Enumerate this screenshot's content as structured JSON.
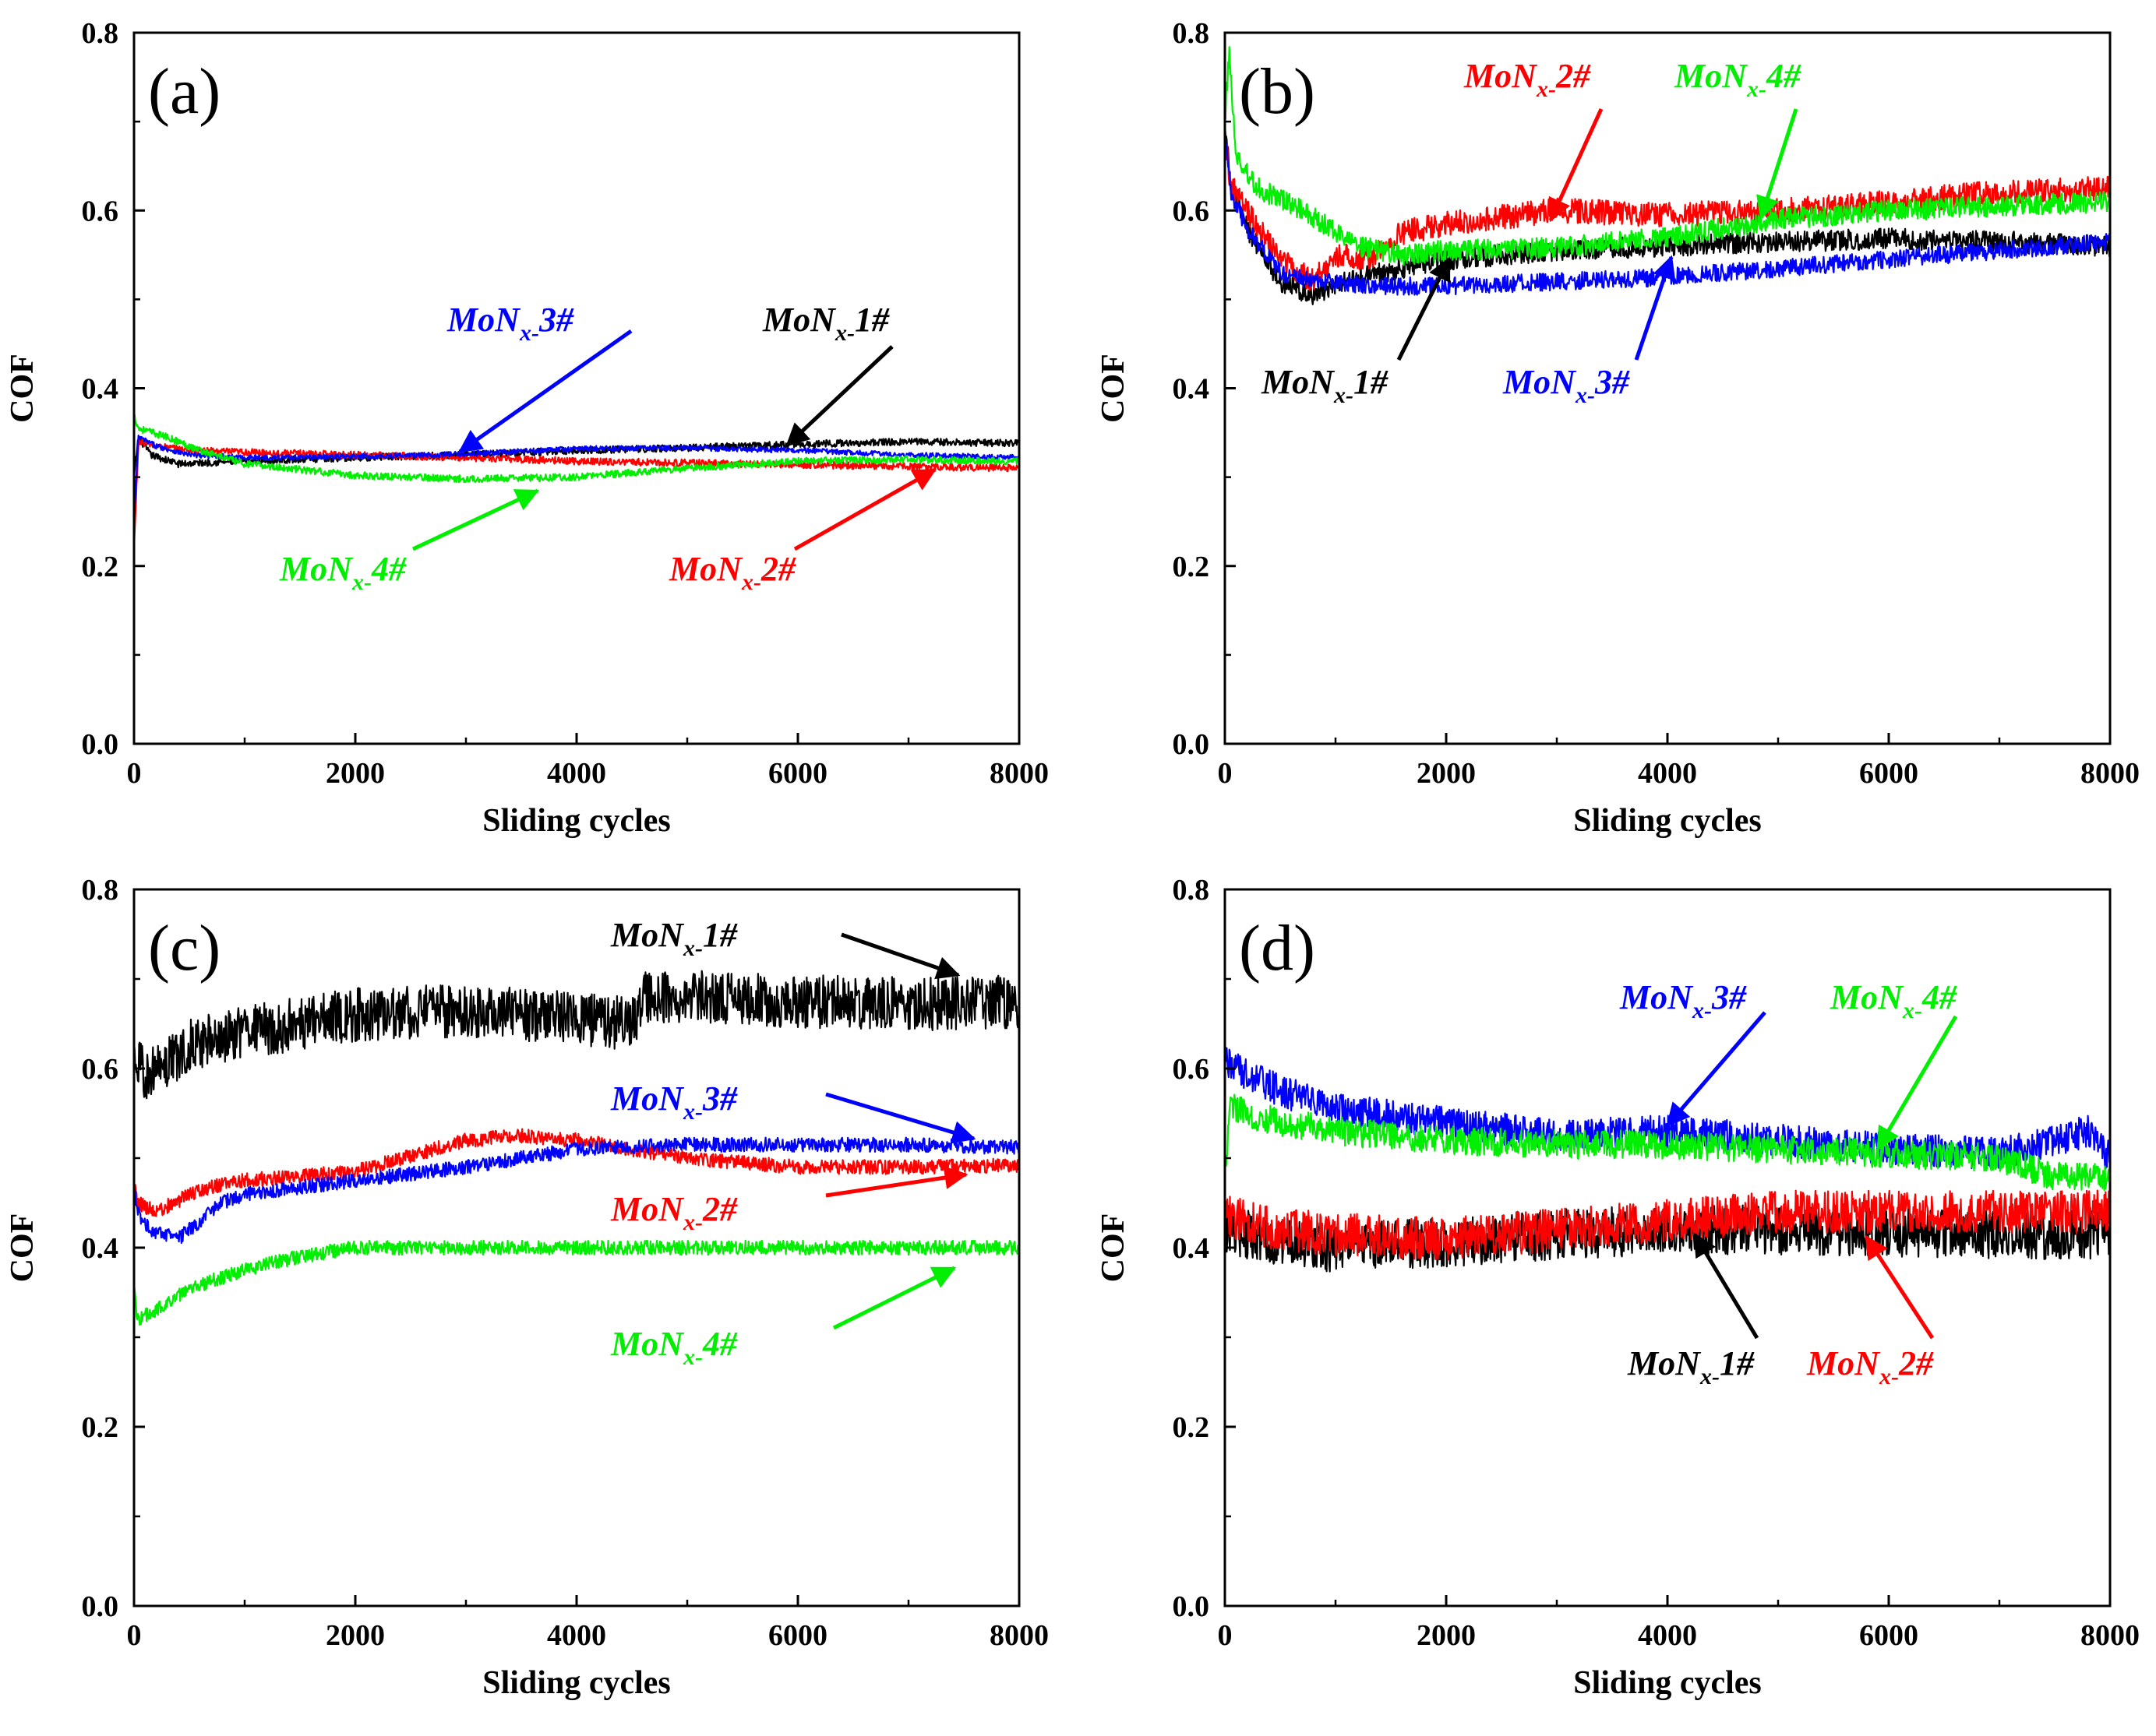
{
  "figure_title": "",
  "chart_data": [
    {
      "type": "line",
      "panel_label": "(a)",
      "xlabel": "Sliding cycles",
      "ylabel": "COF",
      "xlim": [
        0,
        8000
      ],
      "ylim": [
        0.0,
        0.8
      ],
      "x_ticks": [
        0,
        2000,
        4000,
        6000,
        8000
      ],
      "y_ticks": [
        0.0,
        0.2,
        0.4,
        0.6,
        0.8
      ],
      "x_tick_labels": [
        "0",
        "2000",
        "4000",
        "6000",
        "8000"
      ],
      "y_tick_labels": [
        "0.0",
        "0.2",
        "0.4",
        "0.6",
        "0.8"
      ],
      "series": [
        {
          "name": "MoNx-1#",
          "color": "#000000",
          "noise": 0.004,
          "x": [
            0,
            40,
            150,
            400,
            1000,
            2000,
            3000,
            4000,
            5000,
            6000,
            7000,
            8000
          ],
          "y": [
            0.3,
            0.345,
            0.325,
            0.315,
            0.318,
            0.322,
            0.325,
            0.33,
            0.333,
            0.337,
            0.34,
            0.338
          ]
        },
        {
          "name": "MoNx-2#",
          "color": "#ff0000",
          "noise": 0.004,
          "x": [
            0,
            40,
            200,
            500,
            1000,
            2000,
            3000,
            4000,
            5000,
            6000,
            7000,
            8000
          ],
          "y": [
            0.22,
            0.34,
            0.335,
            0.33,
            0.328,
            0.325,
            0.322,
            0.318,
            0.316,
            0.314,
            0.312,
            0.31
          ]
        },
        {
          "name": "MoNx-3#",
          "color": "#0000ff",
          "noise": 0.003,
          "x": [
            0,
            40,
            200,
            500,
            1000,
            2000,
            3000,
            4000,
            5000,
            6000,
            7000,
            8000
          ],
          "y": [
            0.25,
            0.345,
            0.335,
            0.325,
            0.322,
            0.323,
            0.326,
            0.332,
            0.333,
            0.33,
            0.325,
            0.322
          ]
        },
        {
          "name": "MoNx-4#",
          "color": "#00ee00",
          "noise": 0.004,
          "x": [
            0,
            40,
            300,
            600,
            1000,
            2000,
            3000,
            4000,
            5000,
            6000,
            7000,
            8000
          ],
          "y": [
            0.37,
            0.355,
            0.345,
            0.33,
            0.315,
            0.302,
            0.298,
            0.3,
            0.31,
            0.318,
            0.32,
            0.318
          ]
        }
      ],
      "annotations": [
        {
          "base": "MoN",
          "sub": "x-",
          "suffix": "3#",
          "color": "#0000ff"
        },
        {
          "base": "MoN",
          "sub": "x-",
          "suffix": "1#",
          "color": "#000000"
        },
        {
          "base": "MoN",
          "sub": "x-",
          "suffix": "4#",
          "color": "#00ee00"
        },
        {
          "base": "MoN",
          "sub": "x-",
          "suffix": "2#",
          "color": "#ff0000"
        }
      ]
    },
    {
      "type": "line",
      "panel_label": "(b)",
      "xlabel": "Sliding cycles",
      "ylabel": "COF",
      "xlim": [
        0,
        8000
      ],
      "ylim": [
        0.0,
        0.8
      ],
      "x_ticks": [
        0,
        2000,
        4000,
        6000,
        8000
      ],
      "y_ticks": [
        0.0,
        0.2,
        0.4,
        0.6,
        0.8
      ],
      "x_tick_labels": [
        "0",
        "2000",
        "4000",
        "6000",
        "8000"
      ],
      "y_tick_labels": [
        "0.0",
        "0.2",
        "0.4",
        "0.6",
        "0.8"
      ],
      "series": [
        {
          "name": "MoNx-1#",
          "color": "#000000",
          "noise": 0.012,
          "x": [
            0,
            50,
            200,
            500,
            800,
            1200,
            2000,
            3000,
            4000,
            5000,
            6000,
            7000,
            8000
          ],
          "y": [
            0.7,
            0.63,
            0.58,
            0.52,
            0.505,
            0.525,
            0.545,
            0.555,
            0.56,
            0.565,
            0.568,
            0.565,
            0.56
          ]
        },
        {
          "name": "MoNx-2#",
          "color": "#ff0000",
          "noise": 0.014,
          "x": [
            0,
            50,
            200,
            500,
            800,
            1000,
            1300,
            1600,
            2000,
            3000,
            4000,
            5000,
            6000,
            7000,
            8000
          ],
          "y": [
            0.69,
            0.63,
            0.6,
            0.545,
            0.52,
            0.55,
            0.545,
            0.575,
            0.585,
            0.6,
            0.595,
            0.6,
            0.61,
            0.62,
            0.625
          ]
        },
        {
          "name": "MoNx-3#",
          "color": "#0000ff",
          "noise": 0.01,
          "x": [
            0,
            50,
            200,
            500,
            800,
            1500,
            2000,
            3000,
            4000,
            5000,
            6000,
            7000,
            8000
          ],
          "y": [
            0.7,
            0.62,
            0.58,
            0.53,
            0.52,
            0.515,
            0.515,
            0.52,
            0.525,
            0.535,
            0.545,
            0.555,
            0.565
          ]
        },
        {
          "name": "MoNx-4#",
          "color": "#00ee00",
          "noise": 0.012,
          "x": [
            0,
            40,
            100,
            300,
            700,
            1200,
            1600,
            2000,
            3000,
            4000,
            5000,
            6000,
            7000,
            8000
          ],
          "y": [
            0.7,
            0.78,
            0.66,
            0.625,
            0.6,
            0.56,
            0.55,
            0.555,
            0.558,
            0.57,
            0.59,
            0.6,
            0.605,
            0.61
          ]
        }
      ],
      "annotations": [
        {
          "base": "MoN",
          "sub": "x-",
          "suffix": "2#",
          "color": "#ff0000"
        },
        {
          "base": "MoN",
          "sub": "x-",
          "suffix": "4#",
          "color": "#00ee00"
        },
        {
          "base": "MoN",
          "sub": "x-",
          "suffix": "1#",
          "color": "#000000"
        },
        {
          "base": "MoN",
          "sub": "x-",
          "suffix": "3#",
          "color": "#0000ff"
        }
      ]
    },
    {
      "type": "line",
      "panel_label": "(c)",
      "xlabel": "Sliding cycles",
      "ylabel": "COF",
      "xlim": [
        0,
        8000
      ],
      "ylim": [
        0.0,
        0.8
      ],
      "x_ticks": [
        0,
        2000,
        4000,
        6000,
        8000
      ],
      "y_ticks": [
        0.0,
        0.2,
        0.4,
        0.6,
        0.8
      ],
      "x_tick_labels": [
        "0",
        "2000",
        "4000",
        "6000",
        "8000"
      ],
      "y_tick_labels": [
        "0.0",
        "0.2",
        "0.4",
        "0.6",
        "0.8"
      ],
      "series": [
        {
          "name": "MoNx-1#",
          "color": "#000000",
          "noise": 0.03,
          "x": [
            0,
            30,
            150,
            500,
            1000,
            2000,
            3000,
            4000,
            4500,
            4600,
            5000,
            6000,
            7000,
            8000
          ],
          "y": [
            0.63,
            0.6,
            0.595,
            0.625,
            0.64,
            0.66,
            0.665,
            0.655,
            0.65,
            0.68,
            0.68,
            0.675,
            0.672,
            0.675
          ]
        },
        {
          "name": "MoNx-2#",
          "color": "#ff0000",
          "noise": 0.008,
          "x": [
            0,
            30,
            200,
            600,
            1000,
            2000,
            3000,
            3500,
            4000,
            4500,
            5000,
            6000,
            7000,
            8000
          ],
          "y": [
            0.47,
            0.45,
            0.44,
            0.465,
            0.475,
            0.485,
            0.52,
            0.525,
            0.52,
            0.51,
            0.5,
            0.49,
            0.49,
            0.492
          ]
        },
        {
          "name": "MoNx-3#",
          "color": "#0000ff",
          "noise": 0.008,
          "x": [
            0,
            30,
            150,
            400,
            600,
            800,
            1000,
            2000,
            3000,
            4000,
            5000,
            6000,
            7000,
            8000
          ],
          "y": [
            0.47,
            0.44,
            0.42,
            0.41,
            0.43,
            0.45,
            0.46,
            0.475,
            0.49,
            0.51,
            0.515,
            0.515,
            0.515,
            0.512
          ]
        },
        {
          "name": "MoNx-4#",
          "color": "#00ee00",
          "noise": 0.008,
          "x": [
            0,
            30,
            200,
            500,
            1000,
            1500,
            2000,
            3000,
            4000,
            5000,
            6000,
            7000,
            8000
          ],
          "y": [
            0.36,
            0.32,
            0.33,
            0.355,
            0.375,
            0.39,
            0.4,
            0.4,
            0.4,
            0.4,
            0.4,
            0.4,
            0.4
          ]
        }
      ],
      "annotations": [
        {
          "base": "MoN",
          "sub": "x-",
          "suffix": "1#",
          "color": "#000000"
        },
        {
          "base": "MoN",
          "sub": "x-",
          "suffix": "3#",
          "color": "#0000ff"
        },
        {
          "base": "MoN",
          "sub": "x-",
          "suffix": "2#",
          "color": "#ff0000"
        },
        {
          "base": "MoN",
          "sub": "x-",
          "suffix": "4#",
          "color": "#00ee00"
        }
      ]
    },
    {
      "type": "line",
      "panel_label": "(d)",
      "xlabel": "Sliding cycles",
      "ylabel": "COF",
      "xlim": [
        0,
        8000
      ],
      "ylim": [
        0.0,
        0.8
      ],
      "x_ticks": [
        0,
        2000,
        4000,
        6000,
        8000
      ],
      "y_ticks": [
        0.0,
        0.2,
        0.4,
        0.6,
        0.8
      ],
      "x_tick_labels": [
        "0",
        "2000",
        "4000",
        "6000",
        "8000"
      ],
      "y_tick_labels": [
        "0.0",
        "0.2",
        "0.4",
        "0.6",
        "0.8"
      ],
      "series": [
        {
          "name": "MoNx-1#",
          "color": "#000000",
          "noise": 0.028,
          "x": [
            0,
            500,
            1000,
            2000,
            3000,
            4000,
            5000,
            6000,
            7000,
            8000
          ],
          "y": [
            0.42,
            0.405,
            0.4,
            0.405,
            0.415,
            0.42,
            0.42,
            0.418,
            0.415,
            0.415
          ]
        },
        {
          "name": "MoNx-2#",
          "color": "#ff0000",
          "noise": 0.024,
          "x": [
            0,
            500,
            1000,
            2000,
            3000,
            4000,
            5000,
            6000,
            7000,
            8000
          ],
          "y": [
            0.435,
            0.42,
            0.415,
            0.41,
            0.42,
            0.43,
            0.44,
            0.44,
            0.44,
            0.44
          ]
        },
        {
          "name": "MoNx-3#",
          "color": "#0000ff",
          "noise": 0.018,
          "x": [
            0,
            100,
            500,
            1000,
            2000,
            3000,
            4000,
            5000,
            6000,
            7000,
            7500,
            7800,
            8000
          ],
          "y": [
            0.61,
            0.6,
            0.575,
            0.555,
            0.54,
            0.525,
            0.53,
            0.52,
            0.51,
            0.505,
            0.52,
            0.53,
            0.5
          ]
        },
        {
          "name": "MoNx-4#",
          "color": "#00ee00",
          "noise": 0.016,
          "x": [
            0,
            50,
            300,
            1000,
            2000,
            3000,
            4000,
            5000,
            6000,
            7000,
            7500,
            8000
          ],
          "y": [
            0.48,
            0.56,
            0.545,
            0.53,
            0.52,
            0.515,
            0.515,
            0.51,
            0.505,
            0.5,
            0.48,
            0.48
          ]
        }
      ],
      "annotations": [
        {
          "base": "MoN",
          "sub": "x-",
          "suffix": "3#",
          "color": "#0000ff"
        },
        {
          "base": "MoN",
          "sub": "x-",
          "suffix": "4#",
          "color": "#00ee00"
        },
        {
          "base": "MoN",
          "sub": "x-",
          "suffix": "1#",
          "color": "#000000"
        },
        {
          "base": "MoN",
          "sub": "x-",
          "suffix": "2#",
          "color": "#ff0000"
        }
      ]
    }
  ]
}
